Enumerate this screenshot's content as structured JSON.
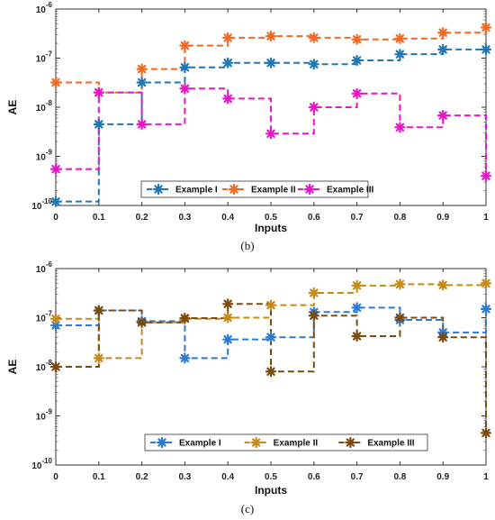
{
  "chart_data": [
    {
      "type": "line",
      "step": true,
      "xlabel": "Inputs",
      "ylabel": "AE",
      "caption": "(b)",
      "xlim": [
        0,
        1
      ],
      "ylim": [
        1e-10,
        1e-06
      ],
      "yscale": "log",
      "x": [
        0,
        0.1,
        0.2,
        0.3,
        0.4,
        0.5,
        0.6,
        0.7,
        0.8,
        0.9,
        1
      ],
      "xtick_labels": [
        "0",
        "0.1",
        "0.2",
        "0.3",
        "0.4",
        "0.5",
        "0.6",
        "0.7",
        "0.8",
        "0.9",
        "1"
      ],
      "ytick_values": [
        1e-10,
        1e-09,
        1e-08,
        1e-07,
        1e-06
      ],
      "ytick_bases": [
        "10",
        "10",
        "10",
        "10",
        "10"
      ],
      "ytick_exps": [
        "-10",
        "-9",
        "-8",
        "-7",
        "-6"
      ],
      "legend_position": "bottom-center",
      "series": [
        {
          "name": "Example I",
          "color": "#1f77b4",
          "values": [
            1.2e-10,
            4.5e-09,
            3.2e-08,
            6.5e-08,
            8e-08,
            8e-08,
            7.5e-08,
            9e-08,
            1.2e-07,
            1.5e-07,
            1.5e-07
          ]
        },
        {
          "name": "Example II",
          "color": "#f06a25",
          "values": [
            3.2e-08,
            2e-08,
            6e-08,
            1.8e-07,
            2.6e-07,
            2.8e-07,
            2.6e-07,
            2.4e-07,
            2.5e-07,
            3.3e-07,
            4.2e-07
          ]
        },
        {
          "name": "Example III",
          "color": "#e617c8",
          "values": [
            5.5e-10,
            2e-08,
            4.5e-09,
            2.4e-08,
            1.5e-08,
            2.9e-09,
            1e-08,
            1.9e-08,
            3.9e-09,
            6.8e-09,
            4e-10
          ]
        }
      ]
    },
    {
      "type": "line",
      "step": true,
      "xlabel": "Inputs",
      "ylabel": "AE",
      "caption": "(c)",
      "xlim": [
        0,
        1
      ],
      "ylim": [
        1e-10,
        1e-06
      ],
      "yscale": "log",
      "x": [
        0,
        0.1,
        0.2,
        0.3,
        0.4,
        0.5,
        0.6,
        0.7,
        0.8,
        0.9,
        1
      ],
      "xtick_labels": [
        "0",
        "0.1",
        "0.2",
        "0.3",
        "0.4",
        "0.5",
        "0.6",
        "0.7",
        "0.8",
        "0.9",
        "1"
      ],
      "ytick_values": [
        1e-10,
        1e-09,
        1e-08,
        1e-07,
        1e-06
      ],
      "ytick_bases": [
        "10",
        "10",
        "10",
        "10",
        "10"
      ],
      "ytick_exps": [
        "-10",
        "-9",
        "-8",
        "-7",
        "-6"
      ],
      "legend_position": "bottom-center",
      "series": [
        {
          "name": "Example I",
          "color": "#2a7bd1",
          "values": [
            7e-08,
            1.4e-07,
            8.5e-08,
            1.5e-08,
            3.6e-08,
            4e-08,
            1.3e-07,
            1.6e-07,
            9e-08,
            5e-08,
            1.5e-07
          ]
        },
        {
          "name": "Example II",
          "color": "#c58a17",
          "values": [
            9.5e-08,
            1.5e-08,
            8e-08,
            9.5e-08,
            1e-07,
            1.8e-07,
            3.2e-07,
            4.5e-07,
            4.8e-07,
            4.6e-07,
            5e-07
          ]
        },
        {
          "name": "Example III",
          "color": "#7a4a0e",
          "values": [
            1e-08,
            1.4e-07,
            8e-08,
            9.8e-08,
            1.9e-07,
            8e-09,
            1.1e-07,
            4.2e-08,
            1e-07,
            4e-08,
            4.5e-10
          ]
        }
      ]
    }
  ]
}
